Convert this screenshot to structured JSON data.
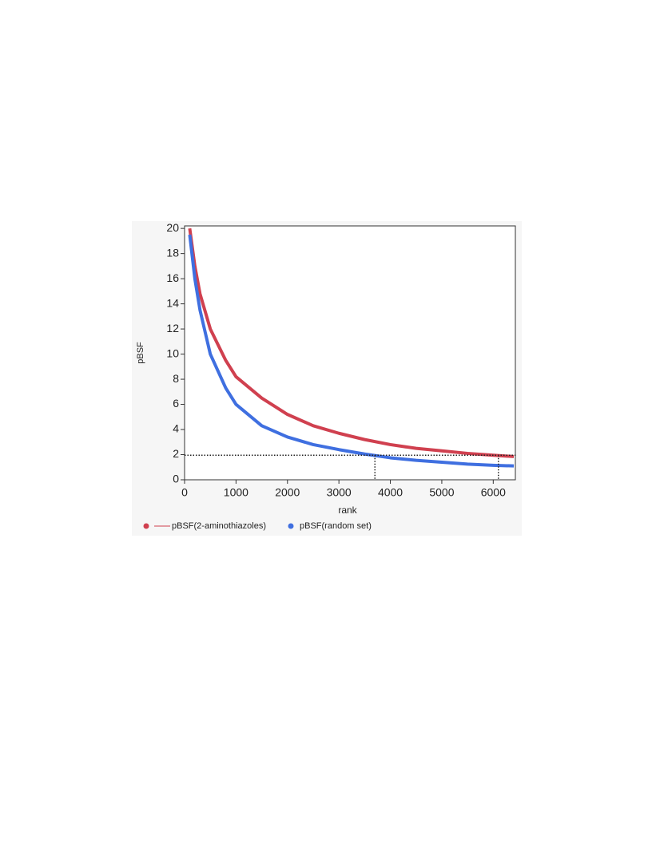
{
  "chart_data": {
    "type": "line",
    "xlabel": "rank",
    "ylabel": "pBSF",
    "x": [
      100,
      200,
      300,
      500,
      800,
      1000,
      1500,
      2000,
      2500,
      3000,
      3500,
      4000,
      4500,
      5000,
      5500,
      6000,
      6400
    ],
    "series": [
      {
        "name": "pBSF(2-aminothiazoles)",
        "color": "#d0404f",
        "values": [
          20,
          17,
          14.8,
          12,
          9.5,
          8.2,
          6.5,
          5.2,
          4.3,
          3.7,
          3.2,
          2.8,
          2.5,
          2.3,
          2.1,
          1.95,
          1.85
        ]
      },
      {
        "name": "pBSF(random set)",
        "color": "#3f6fe0",
        "values": [
          19.5,
          16,
          13.5,
          10,
          7.3,
          6.0,
          4.3,
          3.4,
          2.8,
          2.4,
          2.05,
          1.75,
          1.55,
          1.4,
          1.25,
          1.15,
          1.1
        ]
      }
    ],
    "reference_y": 1.95,
    "reference_x": [
      3700,
      6100
    ],
    "xlim": [
      0,
      6430
    ],
    "ylim": [
      0,
      20.2
    ],
    "xticks": [
      0,
      1000,
      2000,
      3000,
      4000,
      5000,
      6000
    ],
    "yticks": [
      0,
      2,
      4,
      6,
      8,
      10,
      12,
      14,
      16,
      18,
      20
    ]
  }
}
